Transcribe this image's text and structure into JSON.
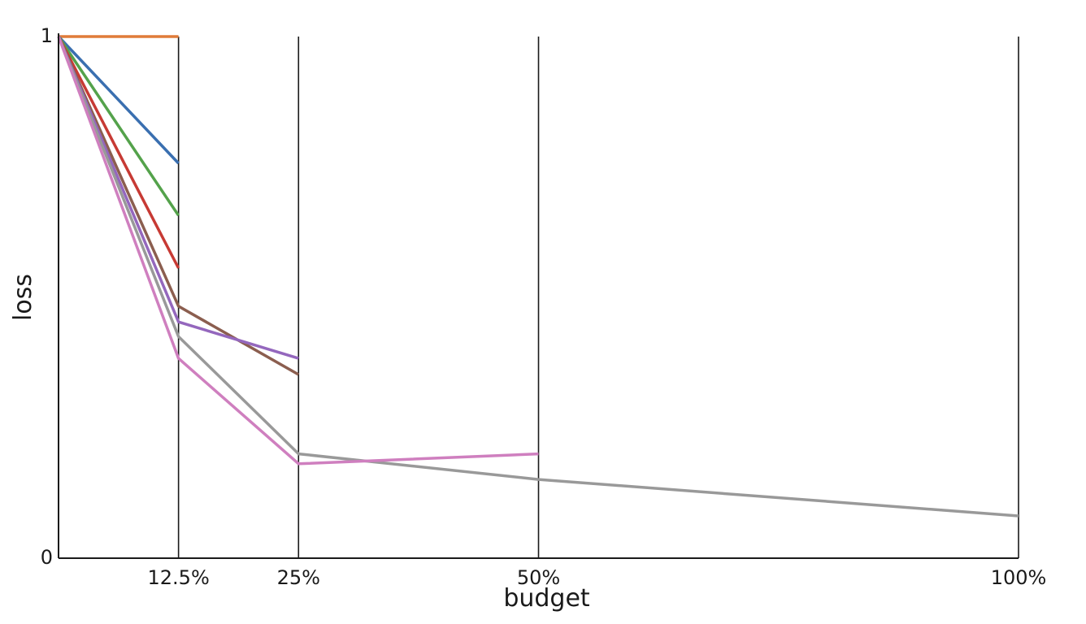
{
  "chart_data": {
    "type": "line",
    "xlabel": "budget",
    "ylabel": "loss",
    "xlim": [
      0,
      100
    ],
    "ylim": [
      0,
      1
    ],
    "x_ticks": [
      {
        "value": 12.5,
        "label": "12.5%"
      },
      {
        "value": 25,
        "label": "25%"
      },
      {
        "value": 50,
        "label": "50%"
      },
      {
        "value": 100,
        "label": "100%"
      }
    ],
    "y_ticks": [
      {
        "value": 0,
        "label": "0"
      },
      {
        "value": 1,
        "label": "1"
      }
    ],
    "vertical_gridlines_at": [
      12.5,
      25,
      50,
      100
    ],
    "grid": false,
    "legend": "none",
    "series": [
      {
        "color": "#e07b39",
        "x": [
          0,
          12.5
        ],
        "y": [
          1.0,
          1.0
        ]
      },
      {
        "color": "#3a6fb0",
        "x": [
          0,
          12.5
        ],
        "y": [
          1.0,
          0.757
        ]
      },
      {
        "color": "#54a24b",
        "x": [
          0,
          12.5
        ],
        "y": [
          1.0,
          0.657
        ]
      },
      {
        "color": "#c73a34",
        "x": [
          0,
          12.5
        ],
        "y": [
          1.0,
          0.556
        ]
      },
      {
        "color": "#8b5e4f",
        "x": [
          0,
          12.5,
          25
        ],
        "y": [
          1.0,
          0.483,
          0.352
        ]
      },
      {
        "color": "#9467bd",
        "x": [
          0,
          12.5,
          25
        ],
        "y": [
          1.0,
          0.453,
          0.383
        ]
      },
      {
        "color": "#999999",
        "x": [
          0,
          12.5,
          25,
          50,
          100
        ],
        "y": [
          1.0,
          0.425,
          0.2,
          0.151,
          0.081
        ]
      },
      {
        "color": "#cf7fbf",
        "x": [
          0,
          12.5,
          25,
          50
        ],
        "y": [
          1.0,
          0.383,
          0.181,
          0.2
        ]
      }
    ]
  }
}
